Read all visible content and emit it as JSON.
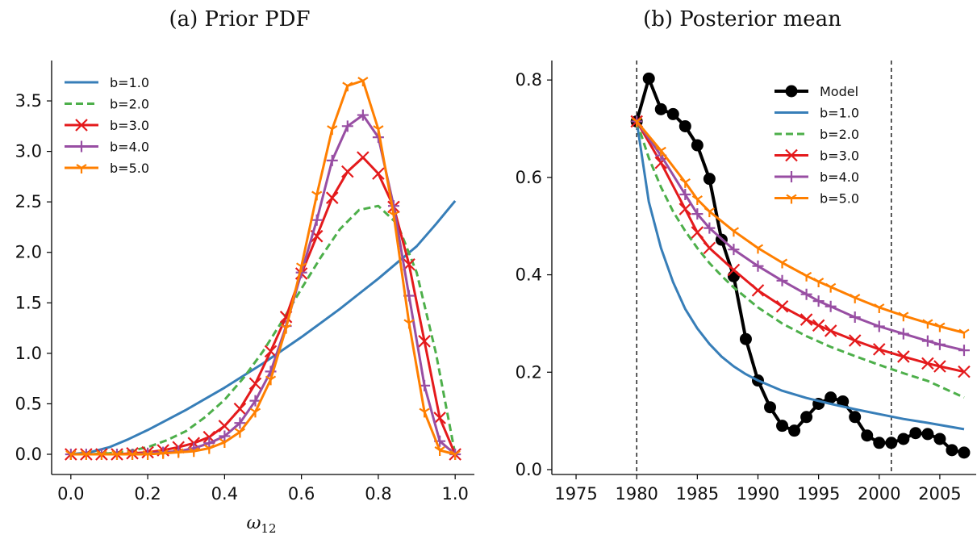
{
  "chart_data": [
    {
      "type": "line",
      "title": "(a) Prior PDF",
      "xlabel": "ω",
      "xlabel_sub": "12",
      "ylabel": "",
      "xlim": [
        -0.05,
        1.05
      ],
      "ylim": [
        -0.2,
        3.9
      ],
      "xticks": [
        0.0,
        0.2,
        0.4,
        0.6,
        0.8,
        1.0
      ],
      "xtick_labels": [
        "0.0",
        "0.2",
        "0.4",
        "0.6",
        "0.8",
        "1.0"
      ],
      "yticks": [
        0.0,
        0.5,
        1.0,
        1.5,
        2.0,
        2.5,
        3.0,
        3.5
      ],
      "ytick_labels": [
        "0.0",
        "0.5",
        "1.0",
        "1.5",
        "2.0",
        "2.5",
        "3.0",
        "3.5"
      ],
      "grid": false,
      "legend_position": "top-left",
      "series": [
        {
          "name": "b=1.0",
          "color": "#377eb8",
          "style": "solid",
          "marker": "none",
          "x": [
            0,
            0.05,
            0.1,
            0.15,
            0.2,
            0.25,
            0.3,
            0.35,
            0.4,
            0.45,
            0.5,
            0.55,
            0.6,
            0.65,
            0.7,
            0.75,
            0.8,
            0.85,
            0.9,
            0.95,
            1.0
          ],
          "y": [
            0,
            0.02,
            0.07,
            0.15,
            0.24,
            0.34,
            0.44,
            0.55,
            0.66,
            0.78,
            0.9,
            1.03,
            1.16,
            1.3,
            1.44,
            1.59,
            1.74,
            1.9,
            2.06,
            2.28,
            2.51
          ]
        },
        {
          "name": "b=2.0",
          "color": "#4daf4a",
          "style": "dashed",
          "marker": "none",
          "x": [
            0,
            0.05,
            0.1,
            0.15,
            0.2,
            0.25,
            0.3,
            0.35,
            0.4,
            0.45,
            0.5,
            0.55,
            0.6,
            0.65,
            0.7,
            0.75,
            0.8,
            0.85,
            0.9,
            0.95,
            1.0
          ],
          "y": [
            0,
            0.0,
            0.01,
            0.03,
            0.07,
            0.14,
            0.23,
            0.37,
            0.54,
            0.76,
            1.02,
            1.32,
            1.64,
            1.95,
            2.23,
            2.42,
            2.46,
            2.28,
            1.8,
            1.0,
            0.0
          ]
        },
        {
          "name": "b=3.0",
          "color": "#e41a1c",
          "style": "solid",
          "marker": "x",
          "x": [
            0,
            0.04,
            0.08,
            0.12,
            0.16,
            0.2,
            0.24,
            0.28,
            0.32,
            0.36,
            0.4,
            0.44,
            0.48,
            0.52,
            0.56,
            0.6,
            0.64,
            0.68,
            0.72,
            0.76,
            0.8,
            0.84,
            0.88,
            0.92,
            0.96,
            1.0
          ],
          "y": [
            0,
            0,
            0,
            0,
            0.01,
            0.02,
            0.04,
            0.07,
            0.11,
            0.17,
            0.28,
            0.45,
            0.7,
            1.02,
            1.36,
            1.79,
            2.16,
            2.54,
            2.8,
            2.94,
            2.78,
            2.45,
            1.88,
            1.12,
            0.36,
            0.0
          ]
        },
        {
          "name": "b=4.0",
          "color": "#984ea3",
          "style": "solid",
          "marker": "+",
          "x": [
            0,
            0.04,
            0.08,
            0.12,
            0.16,
            0.2,
            0.24,
            0.28,
            0.32,
            0.36,
            0.4,
            0.44,
            0.48,
            0.52,
            0.56,
            0.6,
            0.64,
            0.68,
            0.72,
            0.76,
            0.8,
            0.84,
            0.88,
            0.92,
            0.96,
            1.0
          ],
          "y": [
            0,
            0,
            0,
            0,
            0,
            0.01,
            0.02,
            0.03,
            0.06,
            0.11,
            0.18,
            0.31,
            0.53,
            0.82,
            1.27,
            1.8,
            2.32,
            2.91,
            3.25,
            3.36,
            3.14,
            2.46,
            1.57,
            0.68,
            0.13,
            0.0
          ]
        },
        {
          "name": "b=5.0",
          "color": "#ff7f00",
          "style": "solid",
          "marker": "tri",
          "x": [
            0,
            0.04,
            0.08,
            0.12,
            0.16,
            0.2,
            0.24,
            0.28,
            0.32,
            0.36,
            0.4,
            0.44,
            0.48,
            0.52,
            0.56,
            0.6,
            0.64,
            0.68,
            0.72,
            0.76,
            0.8,
            0.84,
            0.88,
            0.92,
            0.96,
            1.0
          ],
          "y": [
            0,
            0,
            0,
            0,
            0,
            0,
            0.01,
            0.02,
            0.03,
            0.06,
            0.12,
            0.22,
            0.42,
            0.74,
            1.25,
            1.86,
            2.57,
            3.22,
            3.65,
            3.7,
            3.22,
            2.37,
            1.3,
            0.42,
            0.04,
            0.0
          ]
        }
      ]
    },
    {
      "type": "line",
      "title": "(b) Posterior mean",
      "xlabel": "",
      "ylabel": "",
      "xlim": [
        1973,
        2008
      ],
      "ylim": [
        -0.01,
        0.84
      ],
      "xticks": [
        1975,
        1980,
        1985,
        1990,
        1995,
        2000,
        2005
      ],
      "xtick_labels": [
        "1975",
        "1980",
        "1985",
        "1990",
        "1995",
        "2000",
        "2005"
      ],
      "yticks": [
        0.0,
        0.2,
        0.4,
        0.6,
        0.8
      ],
      "ytick_labels": [
        "0.0",
        "0.2",
        "0.4",
        "0.6",
        "0.8"
      ],
      "vlines": [
        1980,
        2001
      ],
      "grid": false,
      "legend_position": "top-right",
      "series": [
        {
          "name": "Model",
          "color": "#000000",
          "style": "solid",
          "marker": "circle",
          "x": [
            1980,
            1981,
            1982,
            1983,
            1984,
            1985,
            1986,
            1987,
            1988,
            1989,
            1990,
            1991,
            1992,
            1993,
            1994,
            1995,
            1996,
            1997,
            1998,
            1999,
            2000,
            2001,
            2002,
            2003,
            2004,
            2005,
            2006,
            2007
          ],
          "y": [
            0.715,
            0.803,
            0.74,
            0.73,
            0.705,
            0.666,
            0.597,
            0.472,
            0.397,
            0.268,
            0.183,
            0.128,
            0.09,
            0.08,
            0.108,
            0.135,
            0.148,
            0.14,
            0.108,
            0.07,
            0.055,
            0.055,
            0.063,
            0.075,
            0.073,
            0.063,
            0.04,
            0.035
          ]
        },
        {
          "name": "b=1.0",
          "color": "#377eb8",
          "style": "solid",
          "marker": "none",
          "x": [
            1980,
            1981,
            1982,
            1983,
            1984,
            1985,
            1986,
            1987,
            1988,
            1989,
            1990,
            1992,
            1994,
            1996,
            1998,
            2000,
            2002,
            2004,
            2007
          ],
          "y": [
            0.715,
            0.55,
            0.455,
            0.385,
            0.33,
            0.29,
            0.258,
            0.232,
            0.212,
            0.196,
            0.183,
            0.162,
            0.147,
            0.135,
            0.124,
            0.114,
            0.104,
            0.096,
            0.083
          ]
        },
        {
          "name": "b=2.0",
          "color": "#4daf4a",
          "style": "dashed",
          "marker": "none",
          "x": [
            1980,
            1981,
            1982,
            1983,
            1984,
            1985,
            1986,
            1987,
            1988,
            1990,
            1992,
            1994,
            1996,
            1998,
            2000,
            2002,
            2004,
            2007
          ],
          "y": [
            0.715,
            0.64,
            0.58,
            0.53,
            0.49,
            0.455,
            0.424,
            0.398,
            0.374,
            0.333,
            0.3,
            0.274,
            0.252,
            0.233,
            0.215,
            0.198,
            0.182,
            0.148
          ]
        },
        {
          "name": "b=3.0",
          "color": "#e41a1c",
          "style": "solid",
          "marker": "x",
          "x": [
            1980,
            1982,
            1984,
            1985,
            1986,
            1988,
            1990,
            1992,
            1994,
            1995,
            1996,
            1998,
            2000,
            2002,
            2004,
            2005,
            2007
          ],
          "y": [
            0.715,
            0.63,
            0.535,
            0.487,
            0.455,
            0.41,
            0.368,
            0.335,
            0.308,
            0.296,
            0.285,
            0.265,
            0.247,
            0.232,
            0.218,
            0.212,
            0.201
          ]
        },
        {
          "name": "b=4.0",
          "color": "#984ea3",
          "style": "solid",
          "marker": "+",
          "x": [
            1980,
            1982,
            1984,
            1985,
            1986,
            1988,
            1990,
            1992,
            1994,
            1995,
            1996,
            1998,
            2000,
            2002,
            2004,
            2005,
            2007
          ],
          "y": [
            0.715,
            0.645,
            0.565,
            0.525,
            0.496,
            0.452,
            0.418,
            0.388,
            0.36,
            0.346,
            0.335,
            0.313,
            0.294,
            0.279,
            0.264,
            0.257,
            0.245
          ]
        },
        {
          "name": "b=5.0",
          "color": "#ff7f00",
          "style": "solid",
          "marker": "tri",
          "x": [
            1980,
            1982,
            1984,
            1985,
            1986,
            1988,
            1990,
            1992,
            1994,
            1995,
            1996,
            1998,
            2000,
            2002,
            2004,
            2005,
            2007
          ],
          "y": [
            0.715,
            0.655,
            0.59,
            0.555,
            0.53,
            0.49,
            0.455,
            0.425,
            0.398,
            0.386,
            0.375,
            0.353,
            0.333,
            0.316,
            0.301,
            0.294,
            0.281
          ]
        }
      ]
    }
  ]
}
